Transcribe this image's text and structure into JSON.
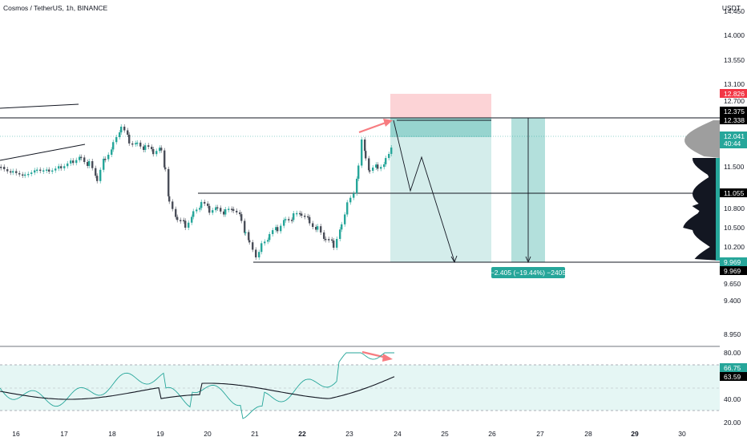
{
  "header": {
    "title": "Cosmos / TetherUS, 1h, BINANCE",
    "currency": "USDT"
  },
  "price_axis": {
    "ticks": [
      "14.450",
      "14.000",
      "13.550",
      "13.100",
      "12.700",
      "11.500",
      "10.800",
      "10.500",
      "10.200",
      "9.650",
      "9.400",
      "8.950"
    ],
    "tags": {
      "stop": {
        "value": "12.826",
        "color": "#f23645"
      },
      "upper_level": {
        "value": "12.375",
        "color": "#000000"
      },
      "entry": {
        "value": "12.338",
        "color": "#000000"
      },
      "current_price": {
        "value": "12.041",
        "countdown": "40:44",
        "color": "#26a69a"
      },
      "mid_level": {
        "value": "11.055",
        "color": "#000000"
      },
      "target": {
        "value": "9.969",
        "color": "#26a69a"
      },
      "low_level": {
        "value": "9.969",
        "color": "#000000"
      }
    }
  },
  "rsi_axis": {
    "ticks": [
      "80.00",
      "40.00",
      "20.00"
    ],
    "rsi_value": "66.75",
    "ma_value": "63.59"
  },
  "time_axis": {
    "labels": [
      "16",
      "17",
      "18",
      "19",
      "20",
      "21",
      "22",
      "23",
      "24",
      "25",
      "26",
      "27",
      "28",
      "29",
      "30"
    ],
    "bold": [
      "22",
      "29"
    ]
  },
  "position_label": "−2.405 (−19.44%) −2405",
  "colors": {
    "up": "#26a69a",
    "down": "#787b86",
    "profit_zone": "#26a69a",
    "loss_zone": "#f23645",
    "arrow": "#f77c80",
    "rsi_band": "#e0f2f1"
  }
}
